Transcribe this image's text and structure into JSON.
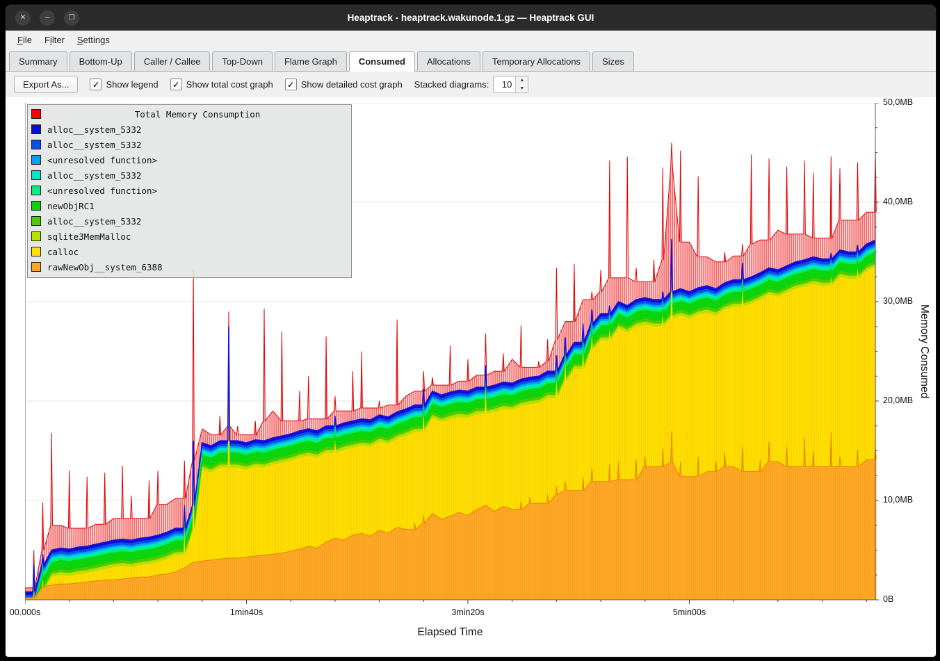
{
  "window": {
    "title": "Heaptrack - heaptrack.wakunode.1.gz — Heaptrack GUI",
    "controls": [
      {
        "name": "close",
        "glyph": "✕"
      },
      {
        "name": "minimize",
        "glyph": "–"
      },
      {
        "name": "maximize",
        "glyph": "❐"
      }
    ]
  },
  "menu": {
    "items": [
      {
        "label": "File",
        "mnemonic": 0
      },
      {
        "label": "Filter",
        "mnemonic": 1
      },
      {
        "label": "Settings",
        "mnemonic": 0
      }
    ]
  },
  "tabs": {
    "active": "Consumed",
    "items": [
      "Summary",
      "Bottom-Up",
      "Caller / Callee",
      "Top-Down",
      "Flame Graph",
      "Consumed",
      "Allocations",
      "Temporary Allocations",
      "Sizes"
    ]
  },
  "toolbar": {
    "export_label": "Export As...",
    "check_glyph": "✓",
    "checkboxes": [
      {
        "label": "Show legend",
        "checked": true
      },
      {
        "label": "Show total cost graph",
        "checked": true
      },
      {
        "label": "Show detailed cost graph",
        "checked": true
      }
    ],
    "stacked_label": "Stacked diagrams:",
    "stacked_spin": {
      "value": "10",
      "up_glyph": "▲",
      "down_glyph": "▼"
    }
  },
  "chart_data": {
    "type": "area",
    "title": "Total Memory Consumption",
    "xlabel": "Elapsed Time",
    "ylabel": "Memory Consumed",
    "x_max_s": 384,
    "y_max_mb": 50,
    "sample_step_s": 4,
    "grid": "horizontal",
    "legend_position": "top-left",
    "x_ticks": [
      {
        "t": 0,
        "label": "00.000s"
      },
      {
        "t": 100,
        "label": "1min40s"
      },
      {
        "t": 200,
        "label": "3min20s"
      },
      {
        "t": 300,
        "label": "5min00s"
      }
    ],
    "y_ticks": [
      {
        "v": 0,
        "label": "0B"
      },
      {
        "v": 10,
        "label": "10,0MB"
      },
      {
        "v": 20,
        "label": "20,0MB"
      },
      {
        "v": 30,
        "label": "30,0MB"
      },
      {
        "v": 40,
        "label": "40,0MB"
      },
      {
        "v": 50,
        "label": "50,0MB"
      }
    ],
    "legend": [
      {
        "label": "Total Memory Consumption",
        "color": "#ff0000",
        "role": "total"
      },
      {
        "label": "alloc__system_5332",
        "color": "#0d0dd9"
      },
      {
        "label": "alloc__system_5332",
        "color": "#0b4fe8"
      },
      {
        "label": "<unresolved function>",
        "color": "#00a3f0"
      },
      {
        "label": "alloc__system_5332",
        "color": "#00e6c8"
      },
      {
        "label": "<unresolved function>",
        "color": "#00ef82"
      },
      {
        "label": "newObjRC1",
        "color": "#0bd40b"
      },
      {
        "label": "alloc__system_5332",
        "color": "#52c800"
      },
      {
        "label": "sqlite3MemMalloc",
        "color": "#b8e000"
      },
      {
        "label": "calloc",
        "color": "#ffe200"
      },
      {
        "label": "rawNewObj__system_6388",
        "color": "#ffa728"
      }
    ],
    "stack": {
      "bands_top_to_bottom": [
        {
          "label": "alloc__system_5332",
          "color": "#0d0dd9",
          "mb": 0.3
        },
        {
          "label": "alloc__system_5332",
          "color": "#0b4fe8",
          "mb": 0.25
        },
        {
          "label": "<unresolved function>",
          "color": "#00a3f0",
          "mb": 0.2
        },
        {
          "label": "alloc__system_5332",
          "color": "#00e6c8",
          "mb": 0.2
        },
        {
          "label": "<unresolved function>",
          "color": "#00ef82",
          "mb": 0.25
        },
        {
          "label": "newObjRC1",
          "color": "#0bd40b",
          "mb": 0.9
        },
        {
          "label": "alloc__system_5332",
          "color": "#52c800",
          "mb": 0.3
        },
        {
          "label": "sqlite3MemMalloc",
          "color": "#b8e000",
          "mb": 0.3
        }
      ],
      "calloc_color": "#ffe200",
      "rawnewobj_color": "#ffa728",
      "total_hatch_bg": "#ffd2d2",
      "total_hatch_line": "#ef3b3b",
      "total_stroke": "#e10000",
      "stack_top_stroke": "#1212dd",
      "orange_top_stroke": "#e08900"
    },
    "series": {
      "total_mb": [
        1.2,
        5.0,
        9.8,
        16.8,
        7.5,
        13.0,
        7.2,
        12.4,
        7.6,
        12.8,
        8.2,
        13.5,
        10.5,
        8.2,
        12.0,
        13.0,
        9.6,
        10.2,
        14.0,
        33.2,
        17.2,
        16.6,
        18.5,
        29.0,
        17.5,
        16.6,
        18.0,
        29.3,
        19.0,
        27.0,
        18.0,
        21.0,
        22.5,
        18.2,
        26.5,
        20.5,
        19.0,
        23.0,
        25.0,
        19.3,
        20.0,
        19.6,
        28.2,
        20.5,
        21.0,
        23.0,
        22.4,
        21.6,
        25.6,
        22.0,
        24.2,
        22.6,
        26.8,
        23.0,
        24.8,
        24.2,
        27.6,
        23.4,
        24.0,
        26.2,
        33.4,
        28.0,
        33.8,
        30.2,
        31.0,
        33.2,
        44.2,
        32.4,
        44.6,
        33.4,
        32.0,
        34.2,
        43.5,
        46.0,
        45.2,
        36.0,
        42.6,
        34.5,
        34.0,
        35.0,
        34.6,
        35.8,
        44.8,
        36.2,
        44.4,
        37.2,
        43.6,
        36.8,
        44.2,
        43.0,
        36.4,
        44.6,
        43.4,
        38.2,
        44.0,
        39.0,
        45.4
      ],
      "stack_top_mb": [
        0.8,
        3.5,
        4.6,
        5.0,
        5.2,
        5.1,
        5.3,
        5.4,
        5.6,
        5.8,
        6.0,
        6.1,
        6.0,
        6.2,
        6.3,
        6.5,
        6.8,
        7.2,
        9.5,
        16.0,
        15.8,
        15.5,
        16.0,
        27.5,
        16.0,
        15.8,
        16.1,
        16.0,
        16.3,
        16.5,
        16.7,
        17.0,
        17.2,
        17.0,
        17.5,
        18.5,
        17.8,
        18.0,
        18.2,
        18.1,
        18.6,
        18.4,
        18.9,
        19.2,
        19.6,
        21.2,
        21.0,
        20.6,
        20.9,
        21.1,
        21.0,
        21.4,
        23.6,
        21.6,
        21.9,
        21.8,
        22.2,
        22.4,
        22.5,
        23.0,
        24.6,
        26.4,
        25.9,
        27.8,
        29.2,
        28.8,
        29.6,
        30.0,
        29.6,
        30.2,
        30.4,
        30.2,
        31.0,
        36.3,
        31.3,
        31.0,
        31.4,
        31.6,
        31.3,
        31.9,
        32.2,
        33.9,
        32.5,
        32.9,
        33.4,
        33.2,
        33.6,
        34.0,
        34.2,
        34.5,
        34.3,
        34.9,
        35.2,
        35.0,
        35.7,
        35.8,
        36.2
      ],
      "rawnewobj_mb": [
        0.2,
        0.9,
        1.3,
        1.5,
        1.6,
        1.6,
        1.7,
        1.8,
        1.9,
        2.0,
        2.0,
        2.1,
        2.2,
        2.3,
        2.3,
        2.5,
        2.6,
        2.8,
        3.2,
        3.8,
        3.9,
        4.0,
        4.1,
        4.2,
        4.2,
        4.3,
        4.4,
        4.5,
        4.6,
        4.7,
        4.9,
        5.1,
        5.4,
        5.2,
        5.8,
        6.2,
        6.0,
        6.5,
        6.7,
        6.4,
        7.0,
        6.7,
        7.3,
        7.1,
        7.7,
        8.5,
        8.7,
        8.1,
        8.4,
        8.8,
        8.5,
        9.1,
        9.5,
        8.9,
        9.4,
        9.1,
        9.9,
        10.3,
        9.7,
        10.6,
        11.4,
        11.9,
        11.0,
        12.4,
        13.2,
        11.9,
        13.7,
        13.9,
        12.1,
        14.1,
        14.4,
        13.4,
        15.2,
        17.0,
        13.9,
        12.4,
        14.4,
        12.9,
        14.0,
        14.9,
        13.4,
        15.4,
        12.9,
        14.1,
        15.9,
        13.9,
        15.4,
        13.4,
        16.4,
        14.9,
        13.4,
        16.9,
        14.4,
        13.4,
        15.1,
        14.1,
        15.4
      ]
    }
  }
}
